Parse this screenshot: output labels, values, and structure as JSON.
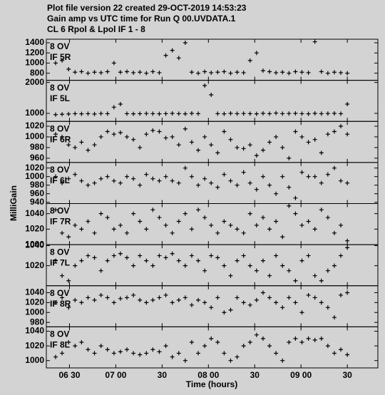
{
  "header": {
    "title_lines": [
      "Plot file version 22  created 29-OCT-2019 14:53:23",
      "Gain amp vs UTC time for Run Q 00.UVDATA.1",
      "CL 6  Rpol & Lpol  IF 1 - 8"
    ]
  },
  "axes": {
    "ylabel": "MilliGain",
    "xlabel": "Time (hours)",
    "xlim": [
      6.25,
      9.83
    ],
    "xticks": [
      {
        "value": 6.5,
        "label": "06 30"
      },
      {
        "value": 7,
        "label": "07 00"
      },
      {
        "value": 7.5,
        "label": "30"
      },
      {
        "value": 8,
        "label": "08 00"
      },
      {
        "value": 8.5,
        "label": "30"
      },
      {
        "value": 9,
        "label": "09 00"
      },
      {
        "value": 9.5,
        "label": "30"
      }
    ]
  },
  "chart_data": [
    {
      "type": "scatter",
      "labels": [
        "8 OV",
        "IF 5R"
      ],
      "ylim": [
        660,
        1470
      ],
      "yticks": [
        800,
        1000,
        1200,
        1400
      ],
      "x": [
        6.35,
        6.42,
        6.49,
        6.56,
        6.63,
        6.7,
        6.77,
        6.84,
        6.91,
        6.98,
        7.05,
        7.12,
        7.19,
        7.26,
        7.33,
        7.4,
        7.47,
        7.54,
        7.61,
        7.68,
        7.75,
        7.82,
        7.89,
        7.96,
        8.03,
        8.1,
        8.17,
        8.24,
        8.31,
        8.38,
        8.45,
        8.52,
        8.59,
        8.66,
        8.73,
        8.8,
        8.87,
        8.94,
        9.01,
        9.08,
        9.15,
        9.22,
        9.29,
        9.36,
        9.43,
        9.5
      ],
      "values": [
        1000,
        1050,
        880,
        820,
        830,
        800,
        820,
        810,
        830,
        1000,
        820,
        830,
        810,
        820,
        800,
        830,
        810,
        1150,
        1250,
        1100,
        1400,
        820,
        800,
        830,
        810,
        820,
        830,
        800,
        820,
        810,
        1050,
        1200,
        850,
        830,
        810,
        820,
        800,
        830,
        820,
        810,
        1420,
        830,
        800,
        820,
        810,
        800
      ]
    },
    {
      "type": "scatter",
      "labels": [
        "8 OV",
        "IF 5L"
      ],
      "ylim": [
        740,
        2070
      ],
      "yticks": [
        1000,
        2000
      ],
      "x": [
        6.35,
        6.42,
        6.49,
        6.56,
        6.63,
        6.7,
        6.77,
        6.84,
        6.91,
        6.98,
        7.05,
        7.12,
        7.19,
        7.26,
        7.33,
        7.4,
        7.47,
        7.54,
        7.61,
        7.68,
        7.75,
        7.82,
        7.89,
        7.96,
        8.03,
        8.1,
        8.17,
        8.24,
        8.31,
        8.38,
        8.45,
        8.52,
        8.59,
        8.66,
        8.73,
        8.8,
        8.87,
        8.94,
        9.01,
        9.08,
        9.15,
        9.22,
        9.29,
        9.36,
        9.43,
        9.5
      ],
      "values": [
        960,
        970,
        980,
        990,
        985,
        990,
        980,
        995,
        990,
        1200,
        1300,
        990,
        985,
        990,
        995,
        990,
        985,
        990,
        1000,
        990,
        985,
        1000,
        990,
        1900,
        1600,
        990,
        985,
        1000,
        990,
        995,
        990,
        985,
        1000,
        990,
        1010,
        990,
        995,
        1000,
        990,
        985,
        1000,
        990,
        995,
        1000,
        990,
        1300
      ]
    },
    {
      "type": "scatter",
      "labels": [
        "8 OV",
        "IF 6R"
      ],
      "ylim": [
        952,
        1029
      ],
      "yticks": [
        960,
        980,
        1000,
        1020
      ],
      "x": [
        6.35,
        6.42,
        6.49,
        6.56,
        6.63,
        6.7,
        6.77,
        6.84,
        6.91,
        6.98,
        7.05,
        7.12,
        7.19,
        7.26,
        7.33,
        7.4,
        7.47,
        7.54,
        7.61,
        7.68,
        7.75,
        7.82,
        7.89,
        7.96,
        8.03,
        8.1,
        8.17,
        8.24,
        8.31,
        8.38,
        8.45,
        8.52,
        8.59,
        8.66,
        8.73,
        8.8,
        8.87,
        8.94,
        9.01,
        9.08,
        9.15,
        9.22,
        9.29,
        9.36,
        9.43,
        9.5
      ],
      "values": [
        1005,
        1000,
        985,
        980,
        990,
        975,
        985,
        1000,
        1010,
        1005,
        1008,
        1000,
        995,
        980,
        1005,
        1012,
        1010,
        998,
        1000,
        985,
        1015,
        990,
        975,
        1000,
        985,
        970,
        1010,
        995,
        980,
        978,
        985,
        965,
        975,
        990,
        1000,
        980,
        960,
        1010,
        1000,
        990,
        995,
        970,
        1005,
        1010,
        1020,
        1005
      ]
    },
    {
      "type": "scatter",
      "labels": [
        "8 OV",
        "IF 6L"
      ],
      "ylim": [
        937,
        1033
      ],
      "yticks": [
        940,
        960,
        980,
        1000,
        1020
      ],
      "x": [
        6.35,
        6.42,
        6.49,
        6.56,
        6.63,
        6.7,
        6.77,
        6.84,
        6.91,
        6.98,
        7.05,
        7.12,
        7.19,
        7.26,
        7.33,
        7.4,
        7.47,
        7.54,
        7.61,
        7.68,
        7.75,
        7.82,
        7.89,
        7.96,
        8.03,
        8.1,
        8.17,
        8.24,
        8.31,
        8.38,
        8.45,
        8.52,
        8.59,
        8.66,
        8.73,
        8.8,
        8.87,
        8.94,
        9.01,
        9.08,
        9.15,
        9.22,
        9.29,
        9.36,
        9.43,
        9.5
      ],
      "values": [
        1000,
        985,
        995,
        1005,
        990,
        980,
        985,
        995,
        1000,
        990,
        985,
        1000,
        995,
        980,
        1005,
        995,
        990,
        1000,
        990,
        985,
        1020,
        1000,
        980,
        995,
        985,
        975,
        1005,
        990,
        980,
        1010,
        985,
        970,
        1000,
        980,
        960,
        1000,
        975,
        950,
        1010,
        1000,
        1000,
        985,
        1005,
        1020,
        990,
        985
      ]
    },
    {
      "type": "scatter",
      "labels": [
        "8 OV",
        "IF 7R"
      ],
      "ylim": [
        1000,
        1053
      ],
      "yticks": [
        1000,
        1020,
        1040
      ],
      "x": [
        6.35,
        6.42,
        6.49,
        6.56,
        6.63,
        6.7,
        6.77,
        6.84,
        6.91,
        6.98,
        7.05,
        7.12,
        7.19,
        7.26,
        7.33,
        7.4,
        7.47,
        7.54,
        7.61,
        7.68,
        7.75,
        7.82,
        7.89,
        7.96,
        8.03,
        8.1,
        8.17,
        8.24,
        8.31,
        8.38,
        8.45,
        8.52,
        8.59,
        8.66,
        8.73,
        8.8,
        8.87,
        8.94,
        9.01,
        9.08,
        9.15,
        9.22,
        9.29,
        9.36,
        9.43,
        9.5
      ],
      "values": [
        1045,
        1015,
        1010,
        1025,
        1020,
        1030,
        1015,
        1040,
        1035,
        1020,
        1025,
        1015,
        1040,
        1030,
        1020,
        1045,
        1035,
        1025,
        1015,
        1030,
        1040,
        1020,
        1045,
        1035,
        1025,
        1015,
        1030,
        1025,
        1020,
        1015,
        1040,
        1025,
        1035,
        1020,
        1030,
        1010,
        1050,
        1040,
        1025,
        1030,
        1020,
        1045,
        1035,
        1015,
        1025,
        1005
      ]
    },
    {
      "type": "scatter",
      "labels": [
        "8 OV",
        "IF 7L"
      ],
      "ylim": [
        1000,
        1041
      ],
      "yticks": [
        1020,
        1040
      ],
      "x": [
        6.35,
        6.42,
        6.49,
        6.56,
        6.63,
        6.7,
        6.77,
        6.84,
        6.91,
        6.98,
        7.05,
        7.12,
        7.19,
        7.26,
        7.33,
        7.4,
        7.47,
        7.54,
        7.61,
        7.68,
        7.75,
        7.82,
        7.89,
        7.96,
        8.03,
        8.1,
        8.17,
        8.24,
        8.31,
        8.38,
        8.45,
        8.52,
        8.59,
        8.66,
        8.73,
        8.8,
        8.87,
        8.94,
        9.01,
        9.08,
        9.15,
        9.22,
        9.29,
        9.36,
        9.43,
        9.5
      ],
      "values": [
        1025,
        1010,
        1005,
        1020,
        1025,
        1030,
        1028,
        1015,
        1025,
        1030,
        1032,
        1028,
        1020,
        1030,
        1025,
        1020,
        1030,
        1028,
        1032,
        1025,
        1020,
        1030,
        1025,
        1015,
        1030,
        1028,
        1020,
        1010,
        1025,
        1030,
        1020,
        1015,
        1025,
        1010,
        1030,
        1020,
        1015,
        1005,
        1025,
        1030,
        1010,
        1005,
        1015,
        1020,
        1030,
        1038
      ]
    },
    {
      "type": "scatter",
      "labels": [
        "8 OV",
        "IF 8R"
      ],
      "ylim": [
        971,
        1054
      ],
      "yticks": [
        980,
        1000,
        1020,
        1040
      ],
      "x": [
        6.35,
        6.42,
        6.49,
        6.56,
        6.63,
        6.7,
        6.77,
        6.84,
        6.91,
        6.98,
        7.05,
        7.12,
        7.19,
        7.26,
        7.33,
        7.4,
        7.47,
        7.54,
        7.61,
        7.68,
        7.75,
        7.82,
        7.89,
        7.96,
        8.03,
        8.1,
        8.17,
        8.24,
        8.31,
        8.38,
        8.45,
        8.52,
        8.59,
        8.66,
        8.73,
        8.8,
        8.87,
        8.94,
        9.01,
        9.08,
        9.15,
        9.22,
        9.29,
        9.36,
        9.43,
        9.5
      ],
      "values": [
        1020,
        1030,
        1010,
        1025,
        1020,
        1030,
        1025,
        1035,
        1030,
        1020,
        1028,
        1030,
        1035,
        1025,
        1020,
        1025,
        1030,
        1035,
        1020,
        1025,
        1030,
        1015,
        1025,
        1020,
        1010,
        1030,
        1000,
        1005,
        1030,
        1020,
        1015,
        1025,
        1040,
        1030,
        1020,
        1010,
        1030,
        1020,
        1000,
        1035,
        1030,
        1020,
        1010,
        990,
        1035,
        1040
      ]
    },
    {
      "type": "scatter",
      "labels": [
        "8 OV",
        "IF 8L"
      ],
      "ylim": [
        990,
        1046
      ],
      "yticks": [
        1000,
        1020,
        1040
      ],
      "x": [
        6.35,
        6.42,
        6.49,
        6.56,
        6.63,
        6.7,
        6.77,
        6.84,
        6.91,
        6.98,
        7.05,
        7.12,
        7.19,
        7.26,
        7.33,
        7.4,
        7.47,
        7.54,
        7.61,
        7.68,
        7.75,
        7.82,
        7.89,
        7.96,
        8.03,
        8.1,
        8.17,
        8.24,
        8.31,
        8.38,
        8.45,
        8.52,
        8.59,
        8.66,
        8.73,
        8.8,
        8.87,
        8.94,
        9.01,
        9.08,
        9.15,
        9.22,
        9.29,
        9.36,
        9.43,
        9.5
      ],
      "values": [
        1005,
        1010,
        1025,
        1020,
        1025,
        1015,
        1010,
        1020,
        1015,
        1010,
        1012,
        1015,
        1010,
        1008,
        1010,
        1015,
        1012,
        1020,
        1005,
        1010,
        1000,
        1025,
        1010,
        1020,
        1030,
        1025,
        1010,
        1000,
        1005,
        1020,
        1025,
        1035,
        1030,
        1020,
        1010,
        1000,
        1025,
        1030,
        1025,
        1030,
        1028,
        1030,
        1020,
        1010,
        1015,
        1008
      ]
    }
  ]
}
